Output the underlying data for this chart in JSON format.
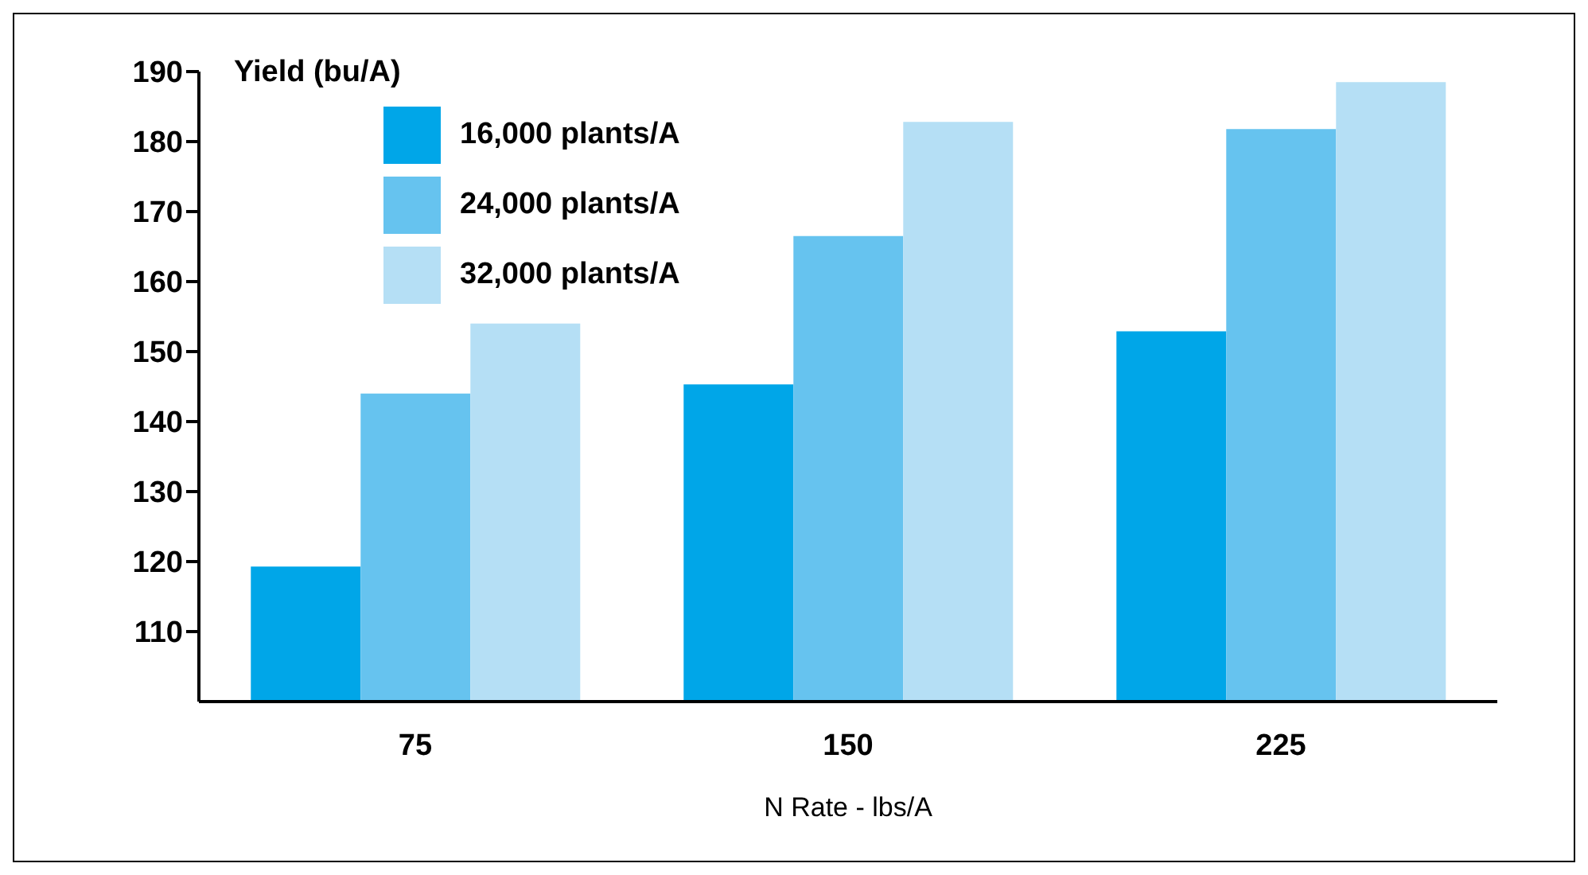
{
  "chart_data": {
    "type": "bar",
    "ylabel": "Yield (bu/A)",
    "xlabel": "N Rate - lbs/A",
    "categories": [
      "75",
      "150",
      "225"
    ],
    "series": [
      {
        "name": "16,000 plants/A",
        "color": "#00a6e8",
        "values": [
          119.3,
          145.3,
          152.9
        ]
      },
      {
        "name": "24,000 plants/A",
        "color": "#66c3ef",
        "values": [
          144,
          166.5,
          181.8
        ]
      },
      {
        "name": "32,000 plants/A",
        "color": "#b5dff5",
        "values": [
          154,
          182.8,
          188.5
        ]
      }
    ],
    "ylim": [
      100,
      190
    ],
    "yticks": [
      110,
      120,
      130,
      140,
      150,
      160,
      170,
      180,
      190
    ],
    "grid": false,
    "legend": "top left"
  }
}
